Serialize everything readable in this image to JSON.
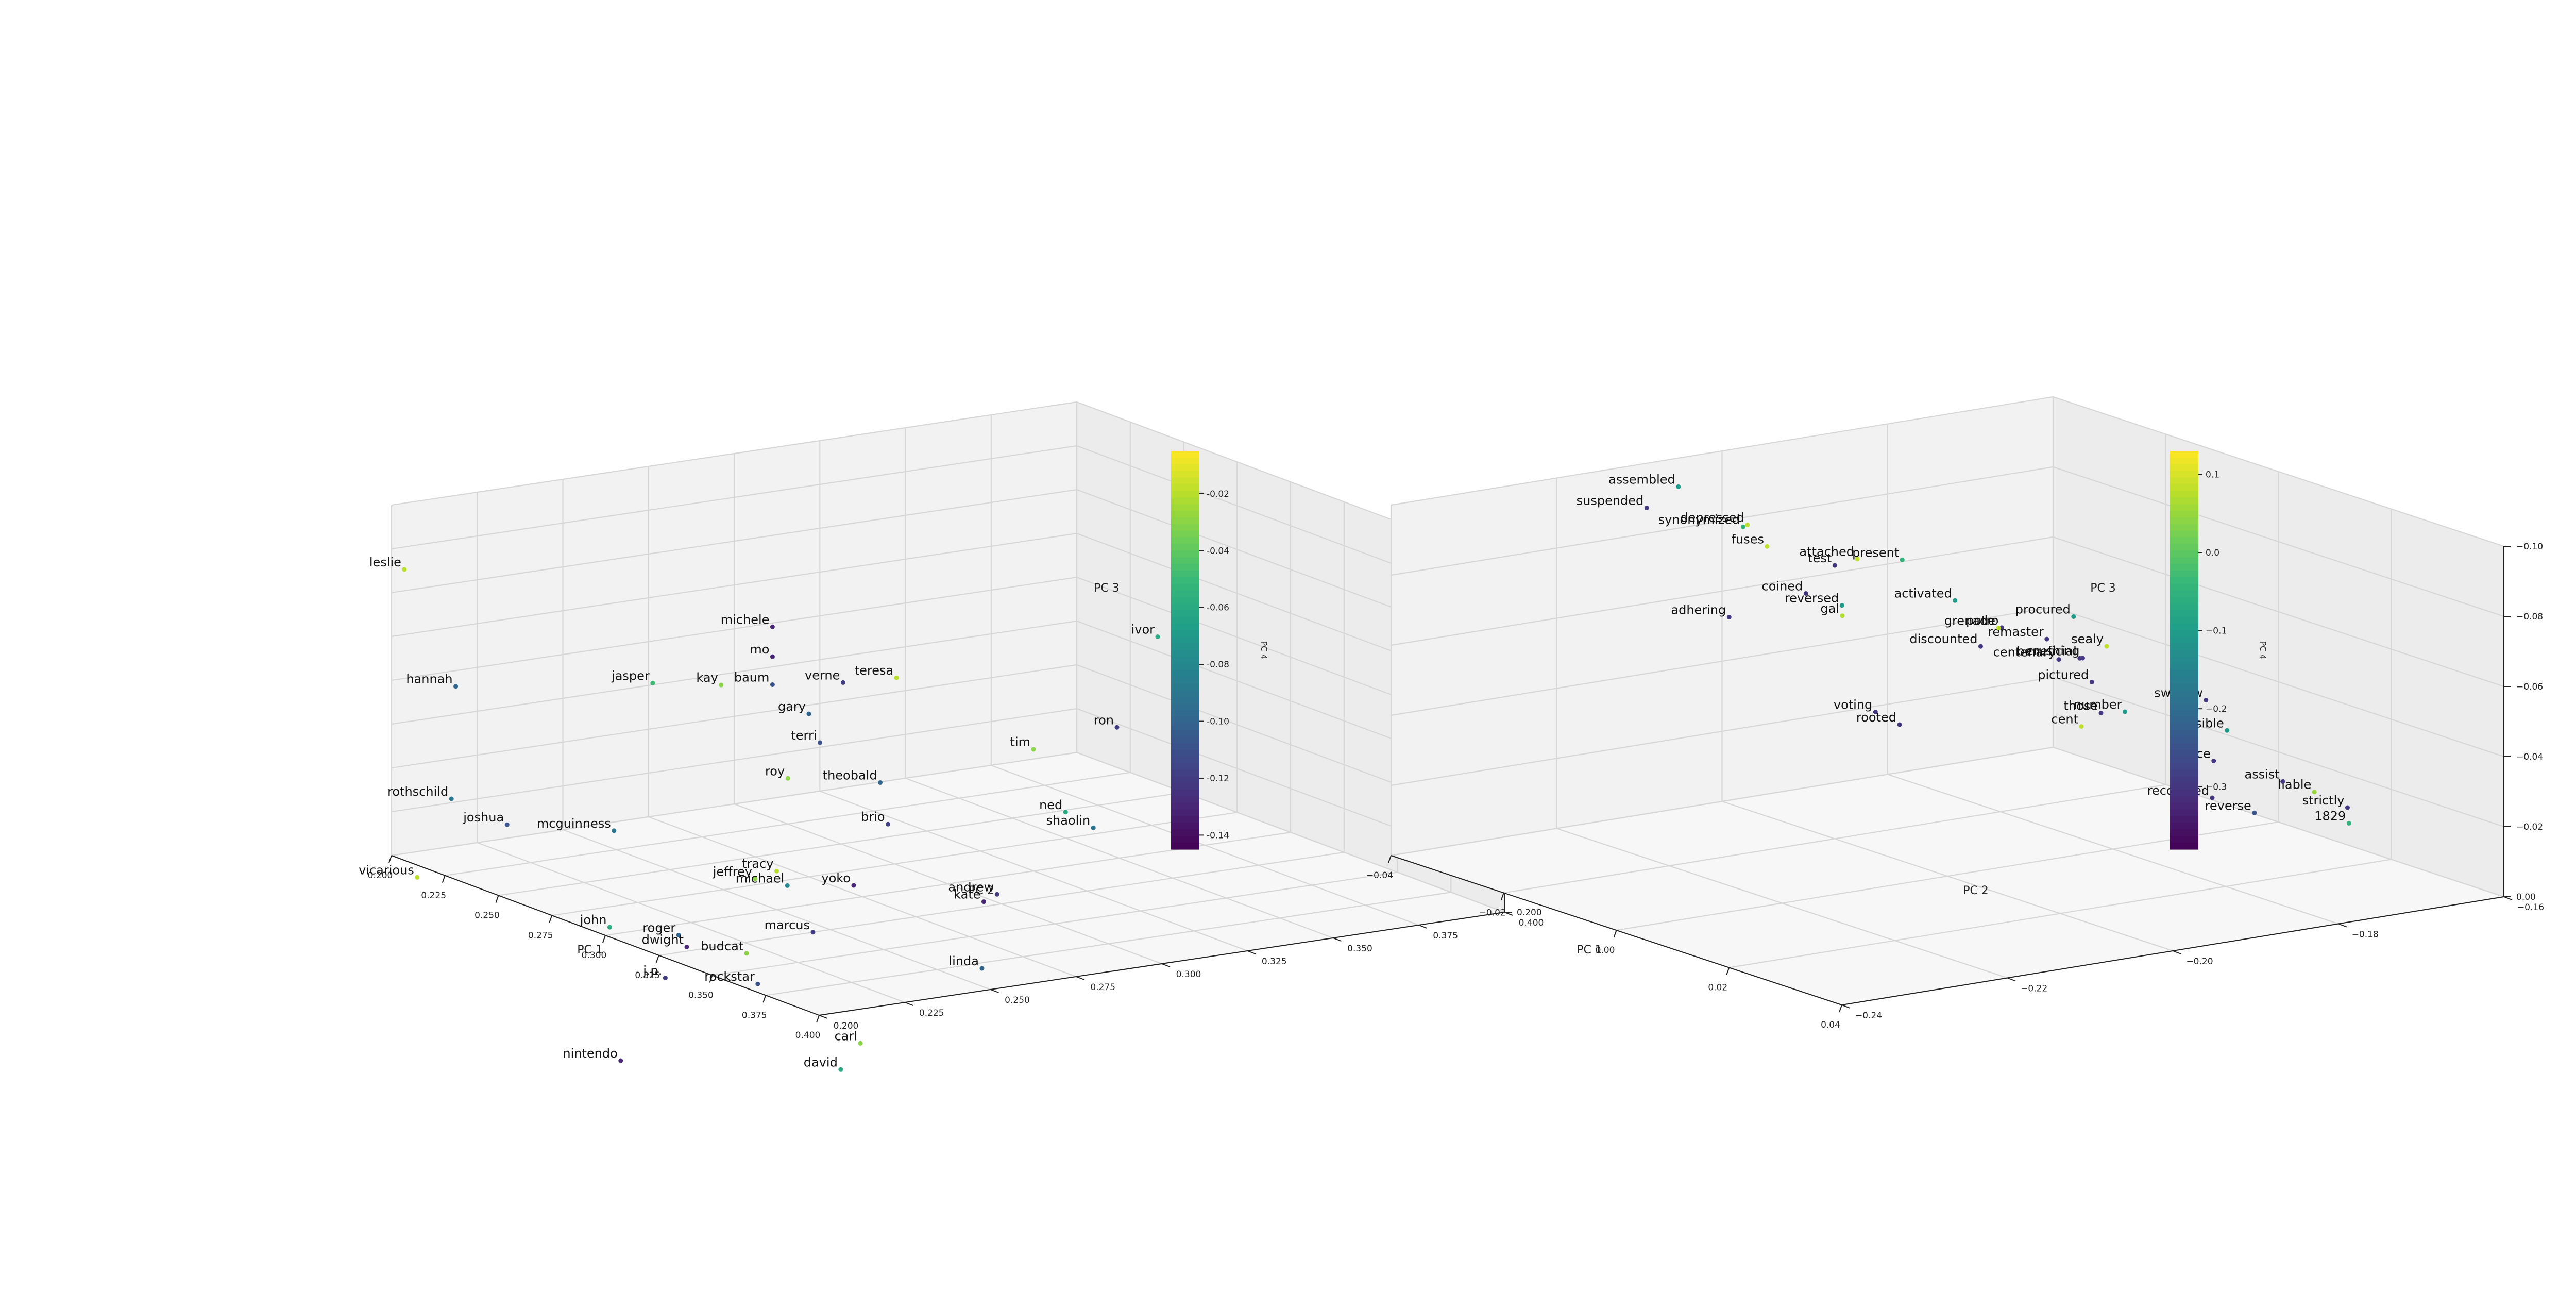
{
  "colormap": {
    "name": "viridis",
    "stops": [
      "#440154",
      "#482878",
      "#3e4989",
      "#31688e",
      "#26828e",
      "#1f9e89",
      "#35b779",
      "#6ece58",
      "#b5de2b",
      "#fde725"
    ]
  },
  "chart_data": [
    {
      "type": "scatter3d",
      "xlabel": "PC 1",
      "ylabel": "PC 2",
      "zlabel": "PC 3",
      "colorbar_label": "PC 4",
      "xlim": [
        0.2,
        0.4
      ],
      "ylim": [
        0.2,
        0.4
      ],
      "zlim": [
        0.2,
        0.4
      ],
      "clim": [
        -0.145,
        -0.005
      ],
      "xticks": [
        "0.200",
        "0.225",
        "0.250",
        "0.275",
        "0.300",
        "0.325",
        "0.350",
        "0.375",
        "0.400"
      ],
      "yticks": [
        "0.200",
        "0.225",
        "0.250",
        "0.275",
        "0.300",
        "0.325",
        "0.350",
        "0.375",
        "0.400"
      ],
      "zticks": [
        "0.200",
        "0.225",
        "0.250",
        "0.275",
        "0.300",
        "0.325",
        "0.350",
        "0.375",
        "0.400"
      ],
      "cticks": [
        "-0.02",
        "-0.04",
        "-0.06",
        "-0.08",
        "-0.10",
        "-0.12",
        "-0.14"
      ],
      "points": [
        {
          "label": "leslie",
          "x": 0.206,
          "y": 0.2,
          "z": 0.366,
          "c": -0.02
        },
        {
          "label": "hannah",
          "x": 0.214,
          "y": 0.21,
          "z": 0.3,
          "c": -0.1
        },
        {
          "label": "rothschild",
          "x": 0.22,
          "y": 0.205,
          "z": 0.24,
          "c": -0.09
        },
        {
          "label": "vicarious",
          "x": 0.212,
          "y": 0.2,
          "z": 0.193,
          "c": -0.02
        },
        {
          "label": "jasper",
          "x": 0.25,
          "y": 0.245,
          "z": 0.308,
          "c": -0.05
        },
        {
          "label": "joshua",
          "x": 0.238,
          "y": 0.21,
          "z": 0.232,
          "c": -0.11
        },
        {
          "label": "mcguinness",
          "x": 0.264,
          "y": 0.225,
          "z": 0.236,
          "c": -0.09
        },
        {
          "label": "michele",
          "x": 0.266,
          "y": 0.27,
          "z": 0.34,
          "c": -0.13
        },
        {
          "label": "mo",
          "x": 0.266,
          "y": 0.27,
          "z": 0.323,
          "c": -0.13
        },
        {
          "label": "kay",
          "x": 0.25,
          "y": 0.265,
          "z": 0.301,
          "c": -0.03
        },
        {
          "label": "baum",
          "x": 0.266,
          "y": 0.27,
          "z": 0.307,
          "c": -0.11
        },
        {
          "label": "verne",
          "x": 0.283,
          "y": 0.28,
          "z": 0.313,
          "c": -0.12
        },
        {
          "label": "teresa",
          "x": 0.3,
          "y": 0.285,
          "z": 0.322,
          "c": -0.02
        },
        {
          "label": "gary",
          "x": 0.275,
          "y": 0.275,
          "z": 0.293,
          "c": -0.1
        },
        {
          "label": "terri",
          "x": 0.285,
          "y": 0.272,
          "z": 0.282,
          "c": -0.11
        },
        {
          "label": "roy",
          "x": 0.286,
          "y": 0.262,
          "z": 0.265,
          "c": -0.03
        },
        {
          "label": "theobald",
          "x": 0.31,
          "y": 0.274,
          "z": 0.27,
          "c": -0.1
        },
        {
          "label": "brio",
          "x": 0.32,
          "y": 0.27,
          "z": 0.252,
          "c": -0.12
        },
        {
          "label": "tim",
          "x": 0.34,
          "y": 0.3,
          "z": 0.295,
          "c": -0.03
        },
        {
          "label": "ron",
          "x": 0.355,
          "y": 0.315,
          "z": 0.31,
          "c": -0.12
        },
        {
          "label": "ivor",
          "x": 0.35,
          "y": 0.33,
          "z": 0.355,
          "c": -0.06
        },
        {
          "label": "ned",
          "x": 0.355,
          "y": 0.3,
          "z": 0.266,
          "c": -0.06
        },
        {
          "label": "shaolin",
          "x": 0.368,
          "y": 0.3,
          "z": 0.263,
          "c": -0.09
        },
        {
          "label": "tracy",
          "x": 0.3,
          "y": 0.25,
          "z": 0.222,
          "c": -0.02
        },
        {
          "label": "jeffrey",
          "x": 0.29,
          "y": 0.25,
          "z": 0.213,
          "c": -0.03
        },
        {
          "label": "michael",
          "x": 0.305,
          "y": 0.25,
          "z": 0.216,
          "c": -0.08
        },
        {
          "label": "yoko",
          "x": 0.32,
          "y": 0.26,
          "z": 0.22,
          "c": -0.13
        },
        {
          "label": "andrew",
          "x": 0.355,
          "y": 0.28,
          "z": 0.225,
          "c": -0.12
        },
        {
          "label": "kate",
          "x": 0.352,
          "y": 0.278,
          "z": 0.22,
          "c": -0.13
        },
        {
          "label": "marcus",
          "x": 0.325,
          "y": 0.245,
          "z": 0.2,
          "c": -0.12
        },
        {
          "label": "john",
          "x": 0.262,
          "y": 0.225,
          "z": 0.18,
          "c": -0.06
        },
        {
          "label": "roger",
          "x": 0.283,
          "y": 0.232,
          "z": 0.183,
          "c": -0.1
        },
        {
          "label": "dwight",
          "x": 0.29,
          "y": 0.23,
          "z": 0.18,
          "c": -0.13
        },
        {
          "label": "budcat",
          "x": 0.31,
          "y": 0.235,
          "z": 0.184,
          "c": -0.03
        },
        {
          "label": "j.p.",
          "x": 0.296,
          "y": 0.22,
          "z": 0.168,
          "c": -0.12
        },
        {
          "label": "rockstar",
          "x": 0.32,
          "y": 0.232,
          "z": 0.172,
          "c": -0.11
        },
        {
          "label": "linda",
          "x": 0.38,
          "y": 0.26,
          "z": 0.2,
          "c": -0.1
        },
        {
          "label": "carl",
          "x": 0.368,
          "y": 0.232,
          "z": 0.16,
          "c": -0.03
        },
        {
          "label": "david",
          "x": 0.37,
          "y": 0.225,
          "z": 0.148,
          "c": -0.06
        },
        {
          "label": "nintendo",
          "x": 0.32,
          "y": 0.192,
          "z": 0.14,
          "c": -0.13
        }
      ]
    },
    {
      "type": "scatter3d",
      "xlabel": "PC 1",
      "ylabel": "PC 2",
      "zlabel": "PC 3",
      "colorbar_label": "PC 4",
      "xlim": [
        -0.05,
        0.05
      ],
      "ylim": [
        -0.25,
        -0.15
      ],
      "zlim": [
        -0.1,
        0.0
      ],
      "zinvert": true,
      "clim": [
        -0.38,
        0.13
      ],
      "xticks": [
        "−0.04",
        "−0.02",
        "0.00",
        "0.02",
        "0.04"
      ],
      "yticks": [
        "−0.24",
        "−0.22",
        "−0.20",
        "−0.18",
        "−0.16"
      ],
      "zticks": [
        "0.00",
        "−0.02",
        "−0.04",
        "−0.06",
        "−0.08",
        "−0.10"
      ],
      "cticks": [
        "0.1",
        "0.0",
        "−0.1",
        "−0.2",
        "−0.3"
      ],
      "points": [
        {
          "label": "reverse",
          "x": 0.002,
          "y": -0.155,
          "z": -0.005,
          "c": -0.25
        },
        {
          "label": "recovered",
          "x": 0.0,
          "y": -0.16,
          "z": -0.01,
          "c": -0.3
        },
        {
          "label": "strictly",
          "x": 0.03,
          "y": -0.16,
          "z": -0.02,
          "c": -0.3
        },
        {
          "label": "liable",
          "x": 0.03,
          "y": -0.165,
          "z": -0.026,
          "c": 0.05
        },
        {
          "label": "1829",
          "x": 0.045,
          "y": -0.17,
          "z": -0.025,
          "c": -0.05
        },
        {
          "label": "once",
          "x": 0.015,
          "y": -0.17,
          "z": -0.03,
          "c": -0.3
        },
        {
          "label": "rooted",
          "x": -0.04,
          "y": -0.18,
          "z": -0.02,
          "c": -0.3
        },
        {
          "label": "voting",
          "x": -0.038,
          "y": -0.185,
          "z": -0.026,
          "c": -0.3
        },
        {
          "label": "those",
          "x": -0.01,
          "y": -0.17,
          "z": -0.033,
          "c": -0.3
        },
        {
          "label": "cent",
          "x": -0.007,
          "y": -0.175,
          "z": -0.032,
          "c": 0.08
        },
        {
          "label": "assist",
          "x": 0.045,
          "y": -0.18,
          "z": -0.04,
          "c": -0.3
        },
        {
          "label": "number",
          "x": 0.01,
          "y": -0.18,
          "z": -0.045,
          "c": -0.1
        },
        {
          "label": "discounted",
          "x": -0.022,
          "y": -0.18,
          "z": -0.05,
          "c": -0.3
        },
        {
          "label": "pictured",
          "x": 0.01,
          "y": -0.185,
          "z": -0.055,
          "c": -0.3
        },
        {
          "label": "possible",
          "x": 0.04,
          "y": -0.185,
          "z": -0.054,
          "c": -0.1
        },
        {
          "label": "gal",
          "x": -0.038,
          "y": -0.19,
          "z": -0.055,
          "c": 0.07
        },
        {
          "label": "potro",
          "x": -0.01,
          "y": -0.185,
          "z": -0.062,
          "c": -0.3
        },
        {
          "label": "remaster",
          "x": 0.0,
          "y": -0.185,
          "z": -0.063,
          "c": -0.3
        },
        {
          "label": "centenary",
          "x": 0.01,
          "y": -0.19,
          "z": -0.063,
          "c": -0.3
        },
        {
          "label": "activated",
          "x": -0.013,
          "y": -0.19,
          "z": -0.07,
          "c": -0.1
        },
        {
          "label": "beneficial",
          "x": 0.022,
          "y": -0.195,
          "z": -0.07,
          "c": -0.3
        },
        {
          "label": "swallow",
          "x": 0.05,
          "y": -0.195,
          "z": -0.07,
          "c": -0.3
        },
        {
          "label": "crushing",
          "x": 0.03,
          "y": -0.2,
          "z": -0.075,
          "c": -0.3
        },
        {
          "label": "fuses",
          "x": -0.04,
          "y": -0.2,
          "z": -0.077,
          "c": 0.08
        },
        {
          "label": "test",
          "x": -0.025,
          "y": -0.2,
          "z": -0.078,
          "c": -0.3
        },
        {
          "label": "attached",
          "x": -0.02,
          "y": -0.2,
          "z": -0.082,
          "c": 0.08
        },
        {
          "label": "synonymized",
          "x": -0.038,
          "y": -0.205,
          "z": -0.085,
          "c": -0.05
        },
        {
          "label": "grenade",
          "x": 0.026,
          "y": -0.21,
          "z": -0.085,
          "c": 0.08
        },
        {
          "label": "sealy",
          "x": 0.05,
          "y": -0.21,
          "z": -0.09,
          "c": 0.08
        },
        {
          "label": "assembled",
          "x": -0.045,
          "y": -0.21,
          "z": -0.095,
          "c": -0.1
        },
        {
          "label": "procured",
          "x": 0.05,
          "y": -0.215,
          "z": -0.1,
          "c": -0.1
        },
        {
          "label": "suspended",
          "x": -0.03,
          "y": -0.225,
          "z": -0.1,
          "c": -0.3
        },
        {
          "label": "depressed",
          "x": -0.015,
          "y": -0.22,
          "z": -0.1,
          "c": 0.08
        },
        {
          "label": "present",
          "x": 0.012,
          "y": -0.215,
          "z": -0.1,
          "c": -0.05
        },
        {
          "label": "coined",
          "x": 0.02,
          "y": -0.235,
          "z": -0.1,
          "c": -0.3
        },
        {
          "label": "reversed",
          "x": 0.028,
          "y": -0.235,
          "z": -0.1,
          "c": -0.1
        },
        {
          "label": "adhering",
          "x": 0.025,
          "y": -0.25,
          "z": -0.1,
          "c": -0.3
        }
      ]
    }
  ]
}
